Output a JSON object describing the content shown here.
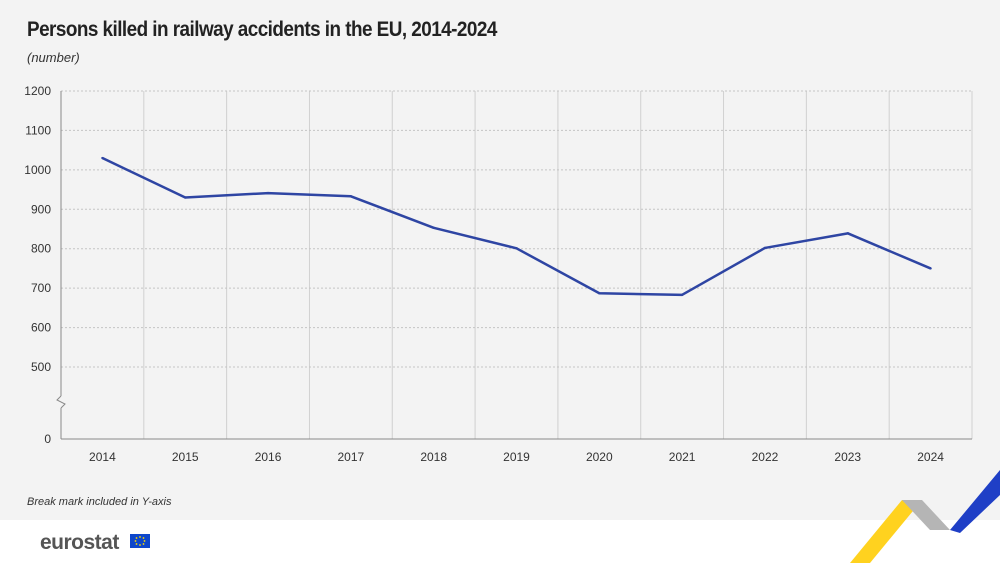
{
  "title": "Persons killed in railway accidents in the EU, 2014-2024",
  "subtitle": "(number)",
  "note": "Break mark included in Y-axis",
  "logo": "eurostat",
  "colors": {
    "line": "#2e45a3",
    "background": "#f3f3f3",
    "grid": "#cccccc"
  },
  "chart_data": {
    "type": "line",
    "title": "Persons killed in railway accidents in the EU, 2014-2024",
    "ylabel": "(number)",
    "xlabel": "",
    "categories": [
      "2014",
      "2015",
      "2016",
      "2017",
      "2018",
      "2019",
      "2020",
      "2021",
      "2022",
      "2023",
      "2024"
    ],
    "values": [
      1030,
      930,
      941,
      933,
      853,
      801,
      687,
      683,
      802,
      839,
      750
    ],
    "y_ticks": [
      "0",
      "500",
      "600",
      "700",
      "800",
      "900",
      "1000",
      "1100",
      "1200"
    ],
    "ylim": [
      500,
      1200
    ],
    "y_axis_break": true,
    "grid": true,
    "legend": "none"
  }
}
